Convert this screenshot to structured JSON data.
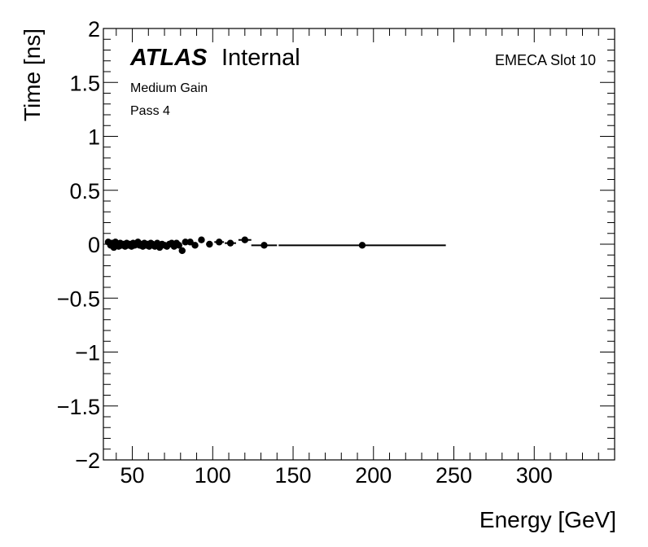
{
  "chart_data": {
    "type": "scatter",
    "title": "",
    "xlabel": "Energy [GeV]",
    "ylabel": "Time [ns]",
    "xlim": [
      32,
      350
    ],
    "ylim": [
      -2,
      2
    ],
    "x_ticks": [
      50,
      100,
      150,
      200,
      250,
      300
    ],
    "x_tick_labels": [
      "50",
      "100",
      "150",
      "200",
      "250",
      "300"
    ],
    "y_ticks": [
      -2,
      -1.5,
      -1,
      -0.5,
      0,
      0.5,
      1,
      1.5,
      2
    ],
    "y_tick_labels": [
      "−2",
      "−1.5",
      "−1",
      "−0.5",
      "0",
      "0.5",
      "1",
      "1.5",
      "2"
    ],
    "grid": false,
    "annotations": {
      "atlas": "ATLAS",
      "internal": "Internal",
      "gain": "Medium Gain",
      "pass": "Pass 4",
      "slot": "EMECA Slot 10"
    },
    "series": [
      {
        "marker": "filled-circle",
        "color": "#000000",
        "points": [
          {
            "x": 35,
            "y": 0.02,
            "xerr": 1
          },
          {
            "x": 36.5,
            "y": -0.01,
            "xerr": 0.7
          },
          {
            "x": 37.5,
            "y": 0.01,
            "xerr": 0.7
          },
          {
            "x": 38.5,
            "y": -0.03,
            "xerr": 0.7
          },
          {
            "x": 39.5,
            "y": 0.02,
            "xerr": 0.7
          },
          {
            "x": 40.5,
            "y": 0.0,
            "xerr": 0.7
          },
          {
            "x": 41.5,
            "y": -0.02,
            "xerr": 0.7
          },
          {
            "x": 42.5,
            "y": 0.01,
            "xerr": 0.7
          },
          {
            "x": 43.5,
            "y": -0.01,
            "xerr": 0.7
          },
          {
            "x": 44.5,
            "y": 0.0,
            "xerr": 0.7
          },
          {
            "x": 45.5,
            "y": -0.02,
            "xerr": 0.7
          },
          {
            "x": 46.5,
            "y": 0.01,
            "xerr": 0.7
          },
          {
            "x": 47.5,
            "y": -0.01,
            "xerr": 0.7
          },
          {
            "x": 48.5,
            "y": 0.0,
            "xerr": 0.7
          },
          {
            "x": 49.5,
            "y": -0.02,
            "xerr": 0.7
          },
          {
            "x": 50.5,
            "y": 0.01,
            "xerr": 0.7
          },
          {
            "x": 51.5,
            "y": -0.01,
            "xerr": 0.7
          },
          {
            "x": 52.5,
            "y": 0.0,
            "xerr": 0.7
          },
          {
            "x": 53.5,
            "y": 0.02,
            "xerr": 0.7
          },
          {
            "x": 54.5,
            "y": -0.01,
            "xerr": 0.7
          },
          {
            "x": 55.5,
            "y": 0.0,
            "xerr": 0.7
          },
          {
            "x": 56.5,
            "y": -0.02,
            "xerr": 0.7
          },
          {
            "x": 57.5,
            "y": 0.01,
            "xerr": 0.7
          },
          {
            "x": 58.5,
            "y": -0.01,
            "xerr": 0.7
          },
          {
            "x": 59.5,
            "y": 0.0,
            "xerr": 0.7
          },
          {
            "x": 60.5,
            "y": -0.02,
            "xerr": 0.7
          },
          {
            "x": 61.5,
            "y": 0.01,
            "xerr": 0.7
          },
          {
            "x": 62.5,
            "y": 0.0,
            "xerr": 0.7
          },
          {
            "x": 64,
            "y": -0.02,
            "xerr": 0.9
          },
          {
            "x": 65.5,
            "y": 0.01,
            "xerr": 0.9
          },
          {
            "x": 67,
            "y": -0.03,
            "xerr": 0.9
          },
          {
            "x": 68.5,
            "y": 0.0,
            "xerr": 0.9
          },
          {
            "x": 70,
            "y": -0.01,
            "xerr": 0.9
          },
          {
            "x": 71.5,
            "y": -0.02,
            "xerr": 0.9
          },
          {
            "x": 73,
            "y": 0.0,
            "xerr": 0.9
          },
          {
            "x": 74.5,
            "y": 0.01,
            "xerr": 0.9
          },
          {
            "x": 76,
            "y": -0.02,
            "xerr": 0.9
          },
          {
            "x": 77.5,
            "y": 0.01,
            "xerr": 0.9
          },
          {
            "x": 79,
            "y": -0.01,
            "xerr": 0.9
          },
          {
            "x": 81,
            "y": -0.06,
            "xerr": 1
          },
          {
            "x": 83,
            "y": 0.02,
            "xerr": 1
          },
          {
            "x": 86,
            "y": 0.02,
            "xerr": 1.5
          },
          {
            "x": 89,
            "y": -0.01,
            "xerr": 1.5
          },
          {
            "x": 93,
            "y": 0.04,
            "xerr": 2
          },
          {
            "x": 98,
            "y": 0.0,
            "xerr": 2
          },
          {
            "x": 104,
            "y": 0.02,
            "xerr": 3
          },
          {
            "x": 111,
            "y": 0.01,
            "xerr": 3.5
          },
          {
            "x": 120,
            "y": 0.04,
            "xerr": 4
          },
          {
            "x": 132,
            "y": -0.01,
            "xerr": 8
          },
          {
            "x": 193,
            "y": -0.01,
            "xerr": 52
          }
        ]
      }
    ]
  }
}
